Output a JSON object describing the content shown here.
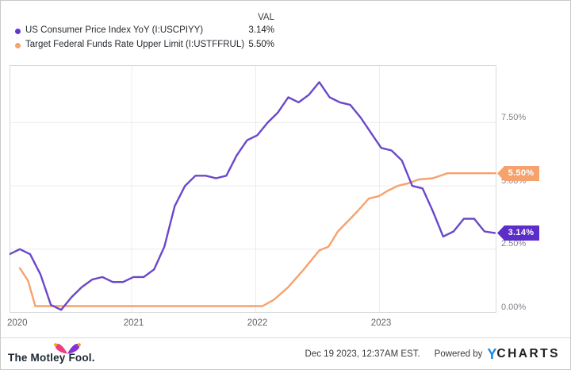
{
  "legend": {
    "val_header": "VAL",
    "series": [
      {
        "label": "US Consumer Price Index YoY (I:USCPIYY)",
        "value": "3.14%",
        "color": "#6138cf"
      },
      {
        "label": "Target Federal Funds Rate Upper Limit (I:USTFFRUL)",
        "value": "5.50%",
        "color": "#f6a26d"
      }
    ]
  },
  "badges": [
    {
      "text": "5.50%",
      "color": "#f6a26d"
    },
    {
      "text": "3.14%",
      "color": "#5c2dc8"
    }
  ],
  "chart_data": {
    "type": "line",
    "title": "",
    "xlabel": "",
    "ylabel": "",
    "grid": true,
    "legend_position": "top-left",
    "x_unit": "month",
    "x_start": "2019-12",
    "x_ticks": [
      "2020",
      "2021",
      "2022",
      "2023"
    ],
    "y_ticks": [
      "7.50%",
      "5.00%",
      "2.50%",
      "0.00%"
    ],
    "ylim": [
      0,
      9.77
    ],
    "series": [
      {
        "name": "US Consumer Price Index YoY (I:USCPIYY)",
        "color": "#6a48ca",
        "latest": "3.14%",
        "values": [
          2.3,
          2.5,
          2.3,
          1.5,
          0.3,
          0.1,
          0.6,
          1.0,
          1.3,
          1.4,
          1.2,
          1.2,
          1.4,
          1.4,
          1.7,
          2.6,
          4.2,
          5.0,
          5.4,
          5.4,
          5.3,
          5.4,
          6.2,
          6.8,
          7.0,
          7.5,
          7.9,
          8.5,
          8.3,
          8.6,
          9.1,
          8.5,
          8.3,
          8.2,
          7.7,
          7.1,
          6.5,
          6.4,
          6.0,
          5.0,
          4.9,
          4.0,
          3.0,
          3.2,
          3.7,
          3.7,
          3.2,
          3.14
        ]
      },
      {
        "name": "Target Federal Funds Rate Upper Limit (I:USTFFRUL)",
        "color": "#f6a26d",
        "latest": "5.50%",
        "points": [
          [
            1.0,
            1.75
          ],
          [
            1.8,
            1.25
          ],
          [
            2.5,
            0.25
          ],
          [
            24.5,
            0.25
          ],
          [
            25.6,
            0.5
          ],
          [
            27.0,
            1.0
          ],
          [
            28.5,
            1.7
          ],
          [
            30.0,
            2.45
          ],
          [
            30.9,
            2.6
          ],
          [
            31.8,
            3.2
          ],
          [
            33.0,
            3.7
          ],
          [
            33.7,
            4.0
          ],
          [
            34.8,
            4.5
          ],
          [
            35.8,
            4.6
          ],
          [
            36.6,
            4.8
          ],
          [
            37.6,
            5.0
          ],
          [
            38.6,
            5.1
          ],
          [
            39.6,
            5.25
          ],
          [
            41.0,
            5.3
          ],
          [
            42.4,
            5.5
          ],
          [
            47.2,
            5.5
          ]
        ]
      }
    ]
  },
  "footer": {
    "logo_text": "The Motley Fool.",
    "timestamp": "Dec 19 2023, 12:37AM EST.",
    "powered_by": "Powered by",
    "brand_y": "Y",
    "brand_rest": "CHARTS",
    "brand_y_color": "#1689e6",
    "hat_colors": {
      "left": "#ee3e80",
      "right": "#8633d6",
      "balls": "#f6a21b"
    }
  }
}
